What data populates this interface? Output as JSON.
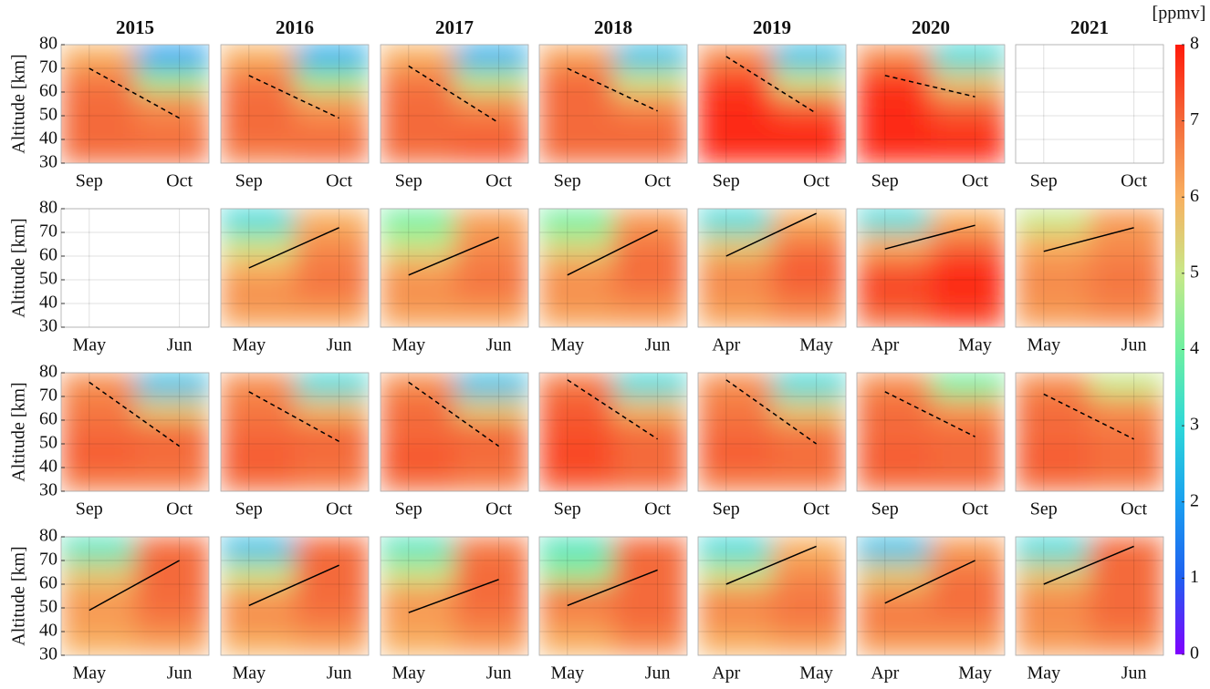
{
  "chart_data": {
    "type": "contour",
    "column_titles": [
      "2015",
      "2016",
      "2017",
      "2018",
      "2019",
      "2020",
      "2021"
    ],
    "ylabel": "Altitude [km]",
    "ylim": [
      30,
      80
    ],
    "yticks": [
      30,
      40,
      50,
      60,
      70,
      80
    ],
    "grid": true,
    "colorbar": {
      "label": "[ppmv]",
      "lim": [
        0,
        8
      ],
      "ticks": [
        0,
        1,
        2,
        3,
        4,
        5,
        6,
        7,
        8
      ],
      "colormap": [
        "#8000ff",
        "#1f5ff0",
        "#1aa0f0",
        "#2ed8d8",
        "#6ef0a0",
        "#c8e888",
        "#f8b060",
        "#f46a3a",
        "#ff1a0a"
      ]
    },
    "rows": [
      {
        "line_style": "dashed",
        "panels": [
          {
            "xticks": [
              "Sep",
              "Oct"
            ],
            "field": [
              [
                7,
                7,
                7,
                6.8,
                6
              ],
              [
                7,
                6.8,
                6.5,
                4.5,
                2
              ]
            ],
            "line": [
              70,
              49
            ]
          },
          {
            "xticks": [
              "Sep",
              "Oct"
            ],
            "field": [
              [
                6.8,
                7,
                7,
                6.8,
                6
              ],
              [
                7,
                6.8,
                6.3,
                4.5,
                2.2
              ]
            ],
            "line": [
              67,
              49
            ]
          },
          {
            "xticks": [
              "Sep",
              "Oct"
            ],
            "field": [
              [
                7,
                7,
                7,
                6.8,
                6
              ],
              [
                7.2,
                7,
                6.5,
                4.8,
                2.2
              ]
            ],
            "line": [
              71,
              47
            ]
          },
          {
            "xticks": [
              "Sep",
              "Oct"
            ],
            "field": [
              [
                7,
                7,
                7,
                7,
                6.2
              ],
              [
                7,
                7,
                6.5,
                5,
                2.5
              ]
            ],
            "line": [
              70,
              52
            ]
          },
          {
            "xticks": [
              "Sep",
              "Oct"
            ],
            "field": [
              [
                7.8,
                7.8,
                7.8,
                7.5,
                6.5
              ],
              [
                7.8,
                7.8,
                7,
                5,
                2.5
              ]
            ],
            "line": [
              75,
              51
            ]
          },
          {
            "xticks": [
              "Sep",
              "Oct"
            ],
            "field": [
              [
                7.8,
                7.8,
                7.8,
                7.6,
                6.5
              ],
              [
                7.8,
                7.6,
                7,
                5.5,
                3
              ]
            ],
            "line": [
              67,
              58
            ]
          },
          {
            "xticks": [
              "Sep",
              "Oct"
            ]
          }
        ]
      },
      {
        "line_style": "solid",
        "panels": [
          {
            "xticks": [
              "May",
              "Jun"
            ]
          },
          {
            "xticks": [
              "May",
              "Jun"
            ],
            "field": [
              [
                6.2,
                6.5,
                6,
                5,
                3
              ],
              [
                6.2,
                6.8,
                6.8,
                6.5,
                6
              ]
            ],
            "line": [
              55,
              72
            ]
          },
          {
            "xticks": [
              "May",
              "Jun"
            ],
            "field": [
              [
                6.2,
                6.5,
                6.2,
                5,
                4
              ],
              [
                6.2,
                6.8,
                6.8,
                6.5,
                6.2
              ]
            ],
            "line": [
              52,
              68
            ]
          },
          {
            "xticks": [
              "May",
              "Jun"
            ],
            "field": [
              [
                6.2,
                6.5,
                6.3,
                5.2,
                4
              ],
              [
                6.3,
                6.8,
                7,
                6.8,
                6.3
              ]
            ],
            "line": [
              52,
              71
            ]
          },
          {
            "xticks": [
              "Apr",
              "May"
            ],
            "field": [
              [
                6.2,
                6.5,
                6.5,
                5.5,
                3
              ],
              [
                6.5,
                7,
                7.2,
                6.8,
                6
              ]
            ],
            "line": [
              60,
              78
            ]
          },
          {
            "xticks": [
              "Apr",
              "May"
            ],
            "field": [
              [
                7,
                7.5,
                7.2,
                6,
                3
              ],
              [
                7.5,
                7.8,
                7.8,
                7,
                6
              ]
            ],
            "line": [
              63,
              73
            ]
          },
          {
            "xticks": [
              "May",
              "Jun"
            ],
            "field": [
              [
                6.3,
                6.5,
                6.5,
                6,
                5
              ],
              [
                6.5,
                6.8,
                6.8,
                6.5,
                6.3
              ]
            ],
            "line": [
              62,
              72
            ]
          }
        ]
      },
      {
        "line_style": "dashed",
        "panels": [
          {
            "xticks": [
              "Sep",
              "Oct"
            ],
            "field": [
              [
                6.8,
                7.2,
                7,
                6.8,
                6.5
              ],
              [
                6.8,
                7,
                7,
                5.5,
                2.5
              ]
            ],
            "line": [
              76,
              49
            ]
          },
          {
            "xticks": [
              "Sep",
              "Oct"
            ],
            "field": [
              [
                7,
                7.2,
                7,
                6.8,
                6.5
              ],
              [
                6.8,
                7,
                7,
                5.8,
                3
              ]
            ],
            "line": [
              72,
              51
            ]
          },
          {
            "xticks": [
              "Sep",
              "Oct"
            ],
            "field": [
              [
                7,
                7.3,
                7,
                7,
                6.5
              ],
              [
                6.8,
                7,
                7,
                5.5,
                2.5
              ]
            ],
            "line": [
              76,
              49
            ]
          },
          {
            "xticks": [
              "Sep",
              "Oct"
            ],
            "field": [
              [
                7.2,
                7.5,
                7.3,
                7.2,
                6.8
              ],
              [
                7,
                7,
                7,
                5.8,
                3
              ]
            ],
            "line": [
              77,
              52
            ]
          },
          {
            "xticks": [
              "Sep",
              "Oct"
            ],
            "field": [
              [
                6.8,
                7.2,
                7,
                6.8,
                6.5
              ],
              [
                6.8,
                7,
                6.8,
                5.5,
                3
              ]
            ],
            "line": [
              77,
              50
            ]
          },
          {
            "xticks": [
              "Sep",
              "Oct"
            ],
            "field": [
              [
                7,
                7.2,
                7,
                7,
                6.5
              ],
              [
                7,
                7,
                7,
                6.3,
                4
              ]
            ],
            "line": [
              72,
              53
            ]
          },
          {
            "xticks": [
              "Sep",
              "Oct"
            ],
            "field": [
              [
                7,
                7.2,
                7,
                7,
                6.5
              ],
              [
                6.8,
                7,
                6.8,
                6.5,
                5
              ]
            ],
            "line": [
              71,
              52
            ]
          }
        ]
      },
      {
        "line_style": "solid",
        "panels": [
          {
            "xticks": [
              "May",
              "Jun"
            ],
            "field": [
              [
                6,
                6.3,
                6.3,
                5.5,
                3.5
              ],
              [
                6.2,
                6.8,
                7,
                7,
                7
              ]
            ],
            "line": [
              49,
              70
            ]
          },
          {
            "xticks": [
              "May",
              "Jun"
            ],
            "field": [
              [
                6,
                6.5,
                6.3,
                5,
                2.5
              ],
              [
                6.2,
                6.8,
                7,
                7,
                7
              ]
            ],
            "line": [
              51,
              68
            ]
          },
          {
            "xticks": [
              "May",
              "Jun"
            ],
            "field": [
              [
                6,
                6.3,
                6.3,
                5,
                3.5
              ],
              [
                6.3,
                6.8,
                7,
                7,
                6.8
              ]
            ],
            "line": [
              48,
              62
            ]
          },
          {
            "xticks": [
              "May",
              "Jun"
            ],
            "field": [
              [
                6,
                6.5,
                6.8,
                4.5,
                3.5
              ],
              [
                6.5,
                7,
                7,
                7,
                7
              ]
            ],
            "line": [
              51,
              66
            ]
          },
          {
            "xticks": [
              "Apr",
              "May"
            ],
            "field": [
              [
                6,
                6.5,
                6.5,
                5,
                3
              ],
              [
                6.2,
                6.8,
                6.8,
                6.5,
                6
              ]
            ],
            "line": [
              60,
              76
            ]
          },
          {
            "xticks": [
              "Apr",
              "May"
            ],
            "field": [
              [
                6.3,
                6.8,
                6.5,
                5.5,
                2.5
              ],
              [
                6.3,
                6.8,
                7,
                6.8,
                6.3
              ]
            ],
            "line": [
              52,
              70
            ]
          },
          {
            "xticks": [
              "May",
              "Jun"
            ],
            "field": [
              [
                6.3,
                6.5,
                6.5,
                5.5,
                3
              ],
              [
                6.5,
                7,
                7,
                7,
                7
              ]
            ],
            "line": [
              60,
              76
            ]
          }
        ]
      }
    ]
  }
}
